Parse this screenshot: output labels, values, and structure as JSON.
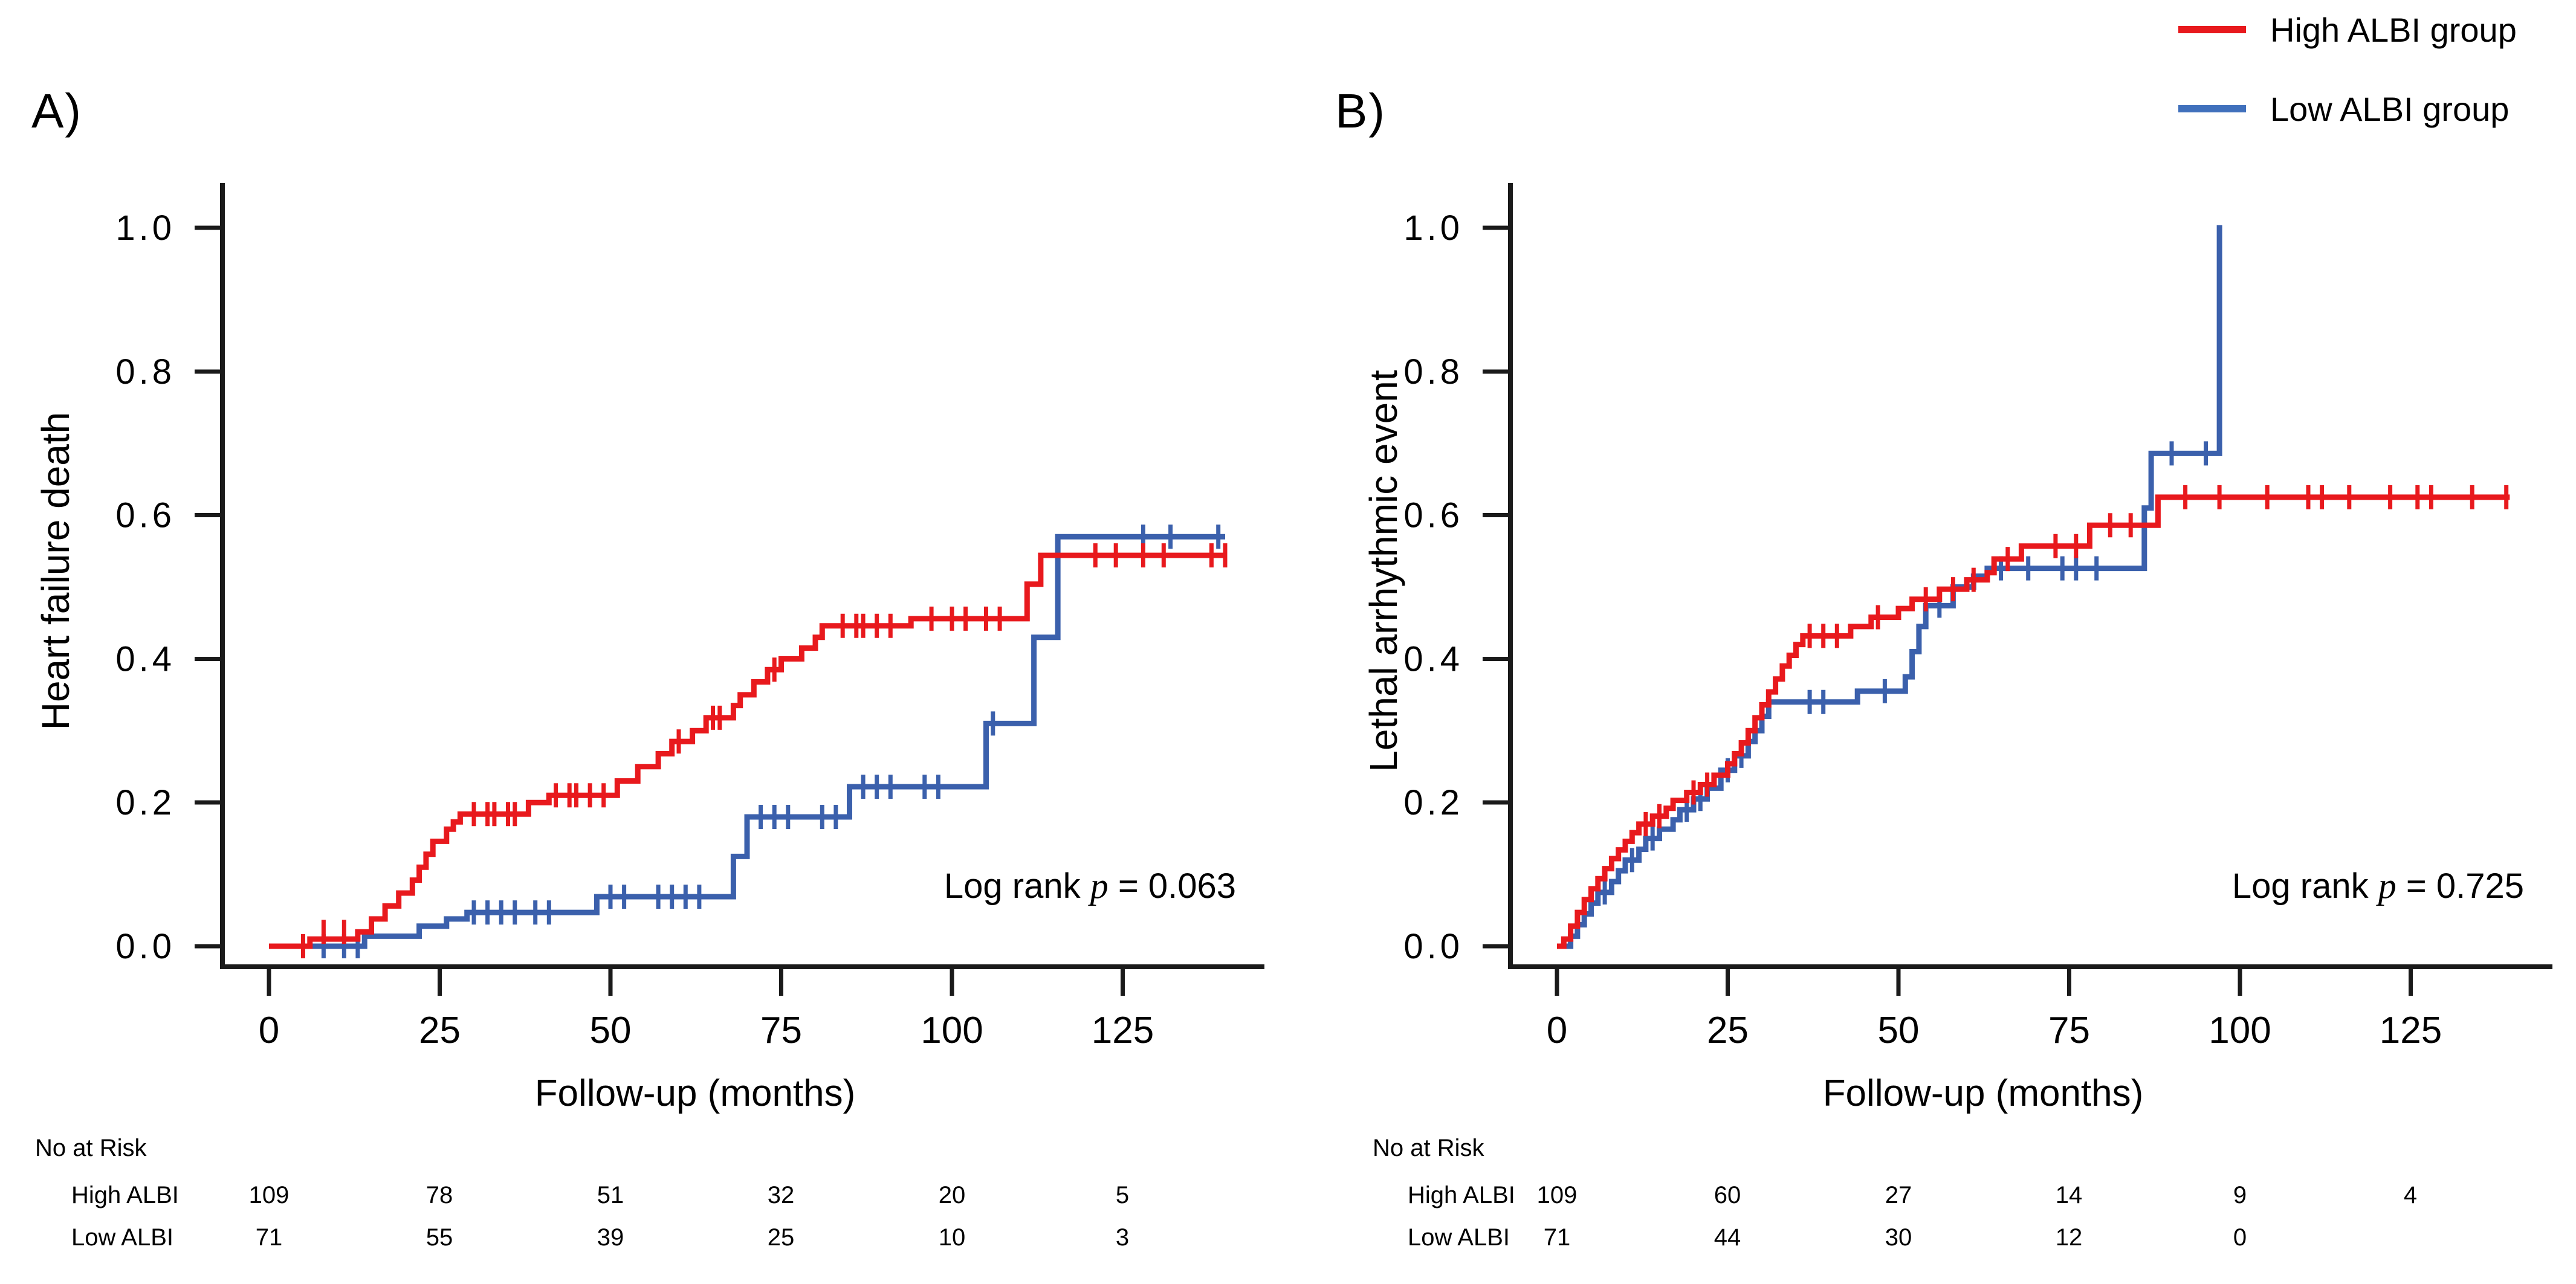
{
  "legend": {
    "items": [
      {
        "label": "High ALBI group",
        "color": "#E8191D"
      },
      {
        "label": "Low ALBI group",
        "color": "#4070BC"
      }
    ]
  },
  "chart_data": [
    {
      "type": "line",
      "subtype": "kaplan-meier-cumulative-incidence",
      "panel_label": "A)",
      "ylabel": "Heart failure death",
      "xlabel": "Follow-up  (months)",
      "logrank": {
        "prefix": "Log rank ",
        "p": "p",
        "rest": " = 0.063"
      },
      "xlim": [
        0,
        145
      ],
      "ylim": [
        0,
        1.0
      ],
      "xticks": [
        0,
        25,
        50,
        75,
        100,
        125
      ],
      "ytick_labels": [
        "0.0",
        "0.2",
        "0.4",
        "0.6",
        "0.8",
        "1.0"
      ],
      "grid": false,
      "series": [
        {
          "name": "High ALBI group",
          "color": "#E8191D",
          "steps": [
            [
              0,
              0
            ],
            [
              6,
              0.01
            ],
            [
              13,
              0.02
            ],
            [
              15,
              0.038
            ],
            [
              17,
              0.056
            ],
            [
              19,
              0.074
            ],
            [
              21,
              0.092
            ],
            [
              22,
              0.11
            ],
            [
              23,
              0.128
            ],
            [
              24,
              0.146
            ],
            [
              26,
              0.163
            ],
            [
              27,
              0.173
            ],
            [
              28,
              0.184
            ],
            [
              38,
              0.2
            ],
            [
              41,
              0.21
            ],
            [
              51,
              0.23
            ],
            [
              54,
              0.25
            ],
            [
              57,
              0.268
            ],
            [
              59,
              0.285
            ],
            [
              62,
              0.3
            ],
            [
              64,
              0.318
            ],
            [
              68,
              0.335
            ],
            [
              69,
              0.35
            ],
            [
              71,
              0.368
            ],
            [
              73,
              0.385
            ],
            [
              75,
              0.4
            ],
            [
              78,
              0.415
            ],
            [
              80,
              0.43
            ],
            [
              81,
              0.446
            ],
            [
              94,
              0.456
            ],
            [
              111,
              0.504
            ],
            [
              113,
              0.544
            ]
          ],
          "end": 140,
          "censors": [
            [
              5,
              0
            ],
            [
              8,
              0.02
            ],
            [
              11,
              0.02
            ],
            [
              30,
              0.184
            ],
            [
              32,
              0.184
            ],
            [
              33,
              0.184
            ],
            [
              35,
              0.184
            ],
            [
              36,
              0.184
            ],
            [
              42,
              0.21
            ],
            [
              44,
              0.21
            ],
            [
              45,
              0.21
            ],
            [
              47,
              0.21
            ],
            [
              49,
              0.21
            ],
            [
              60,
              0.285
            ],
            [
              65,
              0.318
            ],
            [
              66,
              0.318
            ],
            [
              74,
              0.385
            ],
            [
              84,
              0.446
            ],
            [
              86,
              0.446
            ],
            [
              87,
              0.446
            ],
            [
              89,
              0.446
            ],
            [
              91,
              0.446
            ],
            [
              97,
              0.456
            ],
            [
              100,
              0.456
            ],
            [
              102,
              0.456
            ],
            [
              105,
              0.456
            ],
            [
              107,
              0.456
            ],
            [
              121,
              0.544
            ],
            [
              124,
              0.544
            ],
            [
              128,
              0.544
            ],
            [
              131,
              0.544
            ],
            [
              138,
              0.544
            ],
            [
              140,
              0.544
            ]
          ]
        },
        {
          "name": "Low ALBI group",
          "color": "#3B60AC",
          "steps": [
            [
              0,
              0
            ],
            [
              14,
              0.014
            ],
            [
              22,
              0.028
            ],
            [
              26,
              0.038
            ],
            [
              29,
              0.047
            ],
            [
              48,
              0.069
            ],
            [
              68,
              0.125
            ],
            [
              70,
              0.18
            ],
            [
              85,
              0.222
            ],
            [
              105,
              0.31
            ],
            [
              112,
              0.43
            ],
            [
              115.5,
              0.57
            ]
          ],
          "end": 140,
          "censors": [
            [
              8,
              0
            ],
            [
              11,
              0
            ],
            [
              13,
              0
            ],
            [
              30,
              0.047
            ],
            [
              32,
              0.047
            ],
            [
              34,
              0.047
            ],
            [
              36,
              0.047
            ],
            [
              39,
              0.047
            ],
            [
              41,
              0.047
            ],
            [
              50,
              0.069
            ],
            [
              52,
              0.069
            ],
            [
              57,
              0.069
            ],
            [
              59,
              0.069
            ],
            [
              61,
              0.069
            ],
            [
              63,
              0.069
            ],
            [
              72,
              0.18
            ],
            [
              74,
              0.18
            ],
            [
              76,
              0.18
            ],
            [
              81,
              0.18
            ],
            [
              83,
              0.18
            ],
            [
              87,
              0.222
            ],
            [
              89,
              0.222
            ],
            [
              91,
              0.222
            ],
            [
              96,
              0.222
            ],
            [
              98,
              0.222
            ],
            [
              106,
              0.31
            ],
            [
              128,
              0.57
            ],
            [
              132,
              0.57
            ],
            [
              139,
              0.57
            ]
          ]
        }
      ],
      "risk_table": {
        "title": "No at Risk",
        "rows": [
          {
            "label": "High ALBI",
            "values": [
              "109",
              "78",
              "51",
              "32",
              "20",
              "5"
            ]
          },
          {
            "label": "Low ALBI",
            "values": [
              "71",
              "55",
              "39",
              "25",
              "10",
              "3"
            ]
          }
        ]
      }
    },
    {
      "type": "line",
      "subtype": "kaplan-meier-cumulative-incidence",
      "panel_label": "B)",
      "ylabel": "Lethal arrhythmic event",
      "xlabel": "Follow-up  (months)",
      "logrank": {
        "prefix": "Log rank ",
        "p": "p",
        "rest": " = 0.725"
      },
      "xlim": [
        0,
        145
      ],
      "ylim": [
        0,
        1.0
      ],
      "xticks": [
        0,
        25,
        50,
        75,
        100,
        125
      ],
      "ytick_labels": [
        "0.0",
        "0.2",
        "0.4",
        "0.6",
        "0.8",
        "1.0"
      ],
      "grid": false,
      "series": [
        {
          "name": "High ALBI group",
          "color": "#E8191D",
          "steps": [
            [
              0,
              0
            ],
            [
              1,
              0.01
            ],
            [
              2,
              0.028
            ],
            [
              3,
              0.047
            ],
            [
              4,
              0.065
            ],
            [
              5,
              0.08
            ],
            [
              6,
              0.094
            ],
            [
              7,
              0.108
            ],
            [
              8,
              0.122
            ],
            [
              9,
              0.134
            ],
            [
              10,
              0.146
            ],
            [
              11,
              0.158
            ],
            [
              12,
              0.17
            ],
            [
              14,
              0.181
            ],
            [
              16,
              0.192
            ],
            [
              17,
              0.203
            ],
            [
              19,
              0.214
            ],
            [
              21,
              0.225
            ],
            [
              23,
              0.238
            ],
            [
              25,
              0.254
            ],
            [
              26,
              0.268
            ],
            [
              27,
              0.283
            ],
            [
              28,
              0.3
            ],
            [
              29,
              0.318
            ],
            [
              30,
              0.336
            ],
            [
              31,
              0.354
            ],
            [
              32,
              0.372
            ],
            [
              33,
              0.39
            ],
            [
              34,
              0.405
            ],
            [
              35,
              0.42
            ],
            [
              36,
              0.432
            ],
            [
              43,
              0.445
            ],
            [
              46,
              0.458
            ],
            [
              50,
              0.47
            ],
            [
              52,
              0.483
            ],
            [
              56,
              0.497
            ],
            [
              60,
              0.51
            ],
            [
              63,
              0.52
            ],
            [
              64,
              0.539
            ],
            [
              68,
              0.557
            ],
            [
              78,
              0.586
            ],
            [
              88,
              0.625
            ]
          ],
          "end": 139.5,
          "censors": [
            [
              13,
              0.17
            ],
            [
              15,
              0.181
            ],
            [
              20,
              0.214
            ],
            [
              22,
              0.225
            ],
            [
              37,
              0.432
            ],
            [
              39,
              0.432
            ],
            [
              41,
              0.432
            ],
            [
              47,
              0.458
            ],
            [
              54,
              0.483
            ],
            [
              58,
              0.497
            ],
            [
              61,
              0.51
            ],
            [
              66,
              0.539
            ],
            [
              73,
              0.557
            ],
            [
              76,
              0.557
            ],
            [
              81,
              0.586
            ],
            [
              84,
              0.586
            ],
            [
              92,
              0.625
            ],
            [
              97,
              0.625
            ],
            [
              104,
              0.625
            ],
            [
              110,
              0.625
            ],
            [
              112,
              0.625
            ],
            [
              116,
              0.625
            ],
            [
              122,
              0.625
            ],
            [
              126,
              0.625
            ],
            [
              128,
              0.625
            ],
            [
              134,
              0.625
            ],
            [
              139,
              0.625
            ]
          ]
        },
        {
          "name": "Low ALBI group",
          "color": "#3B60AC",
          "steps": [
            [
              0,
              0
            ],
            [
              2,
              0.014
            ],
            [
              3,
              0.03
            ],
            [
              4,
              0.045
            ],
            [
              5,
              0.06
            ],
            [
              6,
              0.075
            ],
            [
              8,
              0.09
            ],
            [
              9,
              0.105
            ],
            [
              10,
              0.12
            ],
            [
              12,
              0.135
            ],
            [
              13,
              0.15
            ],
            [
              15,
              0.163
            ],
            [
              17,
              0.176
            ],
            [
              18,
              0.19
            ],
            [
              20,
              0.205
            ],
            [
              22,
              0.22
            ],
            [
              24,
              0.245
            ],
            [
              26,
              0.265
            ],
            [
              28,
              0.285
            ],
            [
              29,
              0.3
            ],
            [
              30,
              0.32
            ],
            [
              31,
              0.34
            ],
            [
              44,
              0.355
            ],
            [
              51,
              0.375
            ],
            [
              52,
              0.41
            ],
            [
              53,
              0.445
            ],
            [
              54,
              0.474
            ],
            [
              58,
              0.5
            ],
            [
              61,
              0.515
            ],
            [
              63,
              0.526
            ],
            [
              86,
              0.61
            ],
            [
              87,
              0.686
            ],
            [
              97,
              1.0
            ]
          ],
          "end": 97.4,
          "censors": [
            [
              7,
              0.075
            ],
            [
              11,
              0.12
            ],
            [
              14,
              0.15
            ],
            [
              19,
              0.19
            ],
            [
              21,
              0.205
            ],
            [
              25,
              0.245
            ],
            [
              27,
              0.265
            ],
            [
              37,
              0.34
            ],
            [
              39,
              0.34
            ],
            [
              48,
              0.355
            ],
            [
              56,
              0.474
            ],
            [
              65,
              0.526
            ],
            [
              69,
              0.526
            ],
            [
              74,
              0.526
            ],
            [
              76,
              0.526
            ],
            [
              79,
              0.526
            ],
            [
              90,
              0.686
            ],
            [
              95,
              0.686
            ]
          ]
        }
      ],
      "risk_table": {
        "title": "No at Risk",
        "rows": [
          {
            "label": "High ALBI",
            "values": [
              "109",
              "60",
              "27",
              "14",
              "9",
              "4"
            ]
          },
          {
            "label": "Low ALBI",
            "values": [
              "71",
              "44",
              "30",
              "12",
              "0",
              ""
            ]
          }
        ]
      }
    }
  ]
}
